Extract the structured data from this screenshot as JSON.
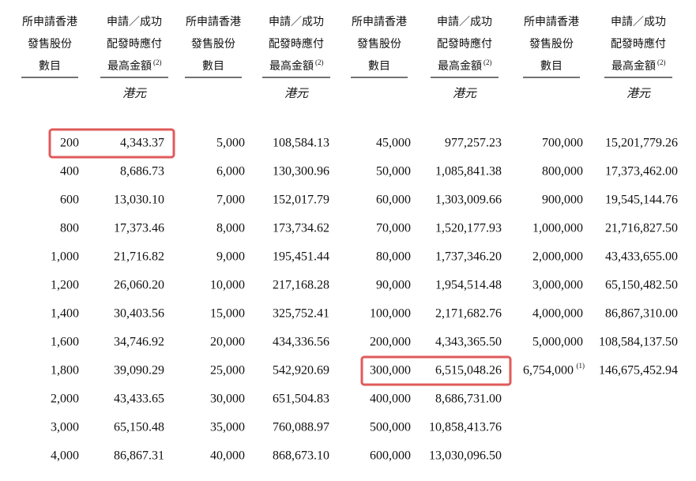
{
  "groups": [
    {
      "header_shares": [
        "所申請香港",
        "發售股份",
        "數目"
      ],
      "header_amount": [
        "申請／成功",
        "配發時應付",
        "最高金額"
      ],
      "header_note": "(2)",
      "unit": "港元",
      "rows": [
        {
          "shares": "200",
          "amount": "4,343.37"
        },
        {
          "shares": "400",
          "amount": "8,686.73"
        },
        {
          "shares": "600",
          "amount": "13,030.10"
        },
        {
          "shares": "800",
          "amount": "17,373.46"
        },
        {
          "shares": "1,000",
          "amount": "21,716.82"
        },
        {
          "shares": "1,200",
          "amount": "26,060.20"
        },
        {
          "shares": "1,400",
          "amount": "30,403.56"
        },
        {
          "shares": "1,600",
          "amount": "34,746.92"
        },
        {
          "shares": "1,800",
          "amount": "39,090.29"
        },
        {
          "shares": "2,000",
          "amount": "43,433.65"
        },
        {
          "shares": "3,000",
          "amount": "65,150.48"
        },
        {
          "shares": "4,000",
          "amount": "86,867.31"
        }
      ]
    },
    {
      "header_shares": [
        "所申請香港",
        "發售股份",
        "數目"
      ],
      "header_amount": [
        "申請／成功",
        "配發時應付",
        "最高金額"
      ],
      "header_note": "(2)",
      "unit": "港元",
      "rows": [
        {
          "shares": "5,000",
          "amount": "108,584.13"
        },
        {
          "shares": "6,000",
          "amount": "130,300.96"
        },
        {
          "shares": "7,000",
          "amount": "152,017.79"
        },
        {
          "shares": "8,000",
          "amount": "173,734.62"
        },
        {
          "shares": "9,000",
          "amount": "195,451.44"
        },
        {
          "shares": "10,000",
          "amount": "217,168.28"
        },
        {
          "shares": "15,000",
          "amount": "325,752.41"
        },
        {
          "shares": "20,000",
          "amount": "434,336.56"
        },
        {
          "shares": "25,000",
          "amount": "542,920.69"
        },
        {
          "shares": "30,000",
          "amount": "651,504.83"
        },
        {
          "shares": "35,000",
          "amount": "760,088.97"
        },
        {
          "shares": "40,000",
          "amount": "868,673.10"
        }
      ]
    },
    {
      "header_shares": [
        "所申請香港",
        "發售股份",
        "數目"
      ],
      "header_amount": [
        "申請／成功",
        "配發時應付",
        "最高金額"
      ],
      "header_note": "(2)",
      "unit": "港元",
      "rows": [
        {
          "shares": "45,000",
          "amount": "977,257.23"
        },
        {
          "shares": "50,000",
          "amount": "1,085,841.38"
        },
        {
          "shares": "60,000",
          "amount": "1,303,009.66"
        },
        {
          "shares": "70,000",
          "amount": "1,520,177.93"
        },
        {
          "shares": "80,000",
          "amount": "1,737,346.20"
        },
        {
          "shares": "90,000",
          "amount": "1,954,514.48"
        },
        {
          "shares": "100,000",
          "amount": "2,171,682.76"
        },
        {
          "shares": "200,000",
          "amount": "4,343,365.50"
        },
        {
          "shares": "300,000",
          "amount": "6,515,048.26"
        },
        {
          "shares": "400,000",
          "amount": "8,686,731.00"
        },
        {
          "shares": "500,000",
          "amount": "10,858,413.76"
        },
        {
          "shares": "600,000",
          "amount": "13,030,096.50"
        }
      ]
    },
    {
      "header_shares": [
        "所申請香港",
        "發售股份",
        "數目"
      ],
      "header_amount": [
        "申請／成功",
        "配發時應付",
        "最高金額"
      ],
      "header_note": "(2)",
      "unit": "港元",
      "rows": [
        {
          "shares": "700,000",
          "amount": "15,201,779.26"
        },
        {
          "shares": "800,000",
          "amount": "17,373,462.00"
        },
        {
          "shares": "900,000",
          "amount": "19,545,144.76"
        },
        {
          "shares": "1,000,000",
          "amount": "21,716,827.50"
        },
        {
          "shares": "2,000,000",
          "amount": "43,433,655.00"
        },
        {
          "shares": "3,000,000",
          "amount": "65,150,482.50"
        },
        {
          "shares": "4,000,000",
          "amount": "86,867,310.00"
        },
        {
          "shares": "5,000,000",
          "amount": "108,584,137.50"
        },
        {
          "shares": "6,754,000",
          "note": "(1)",
          "amount": "146,675,452.94"
        }
      ]
    }
  ]
}
